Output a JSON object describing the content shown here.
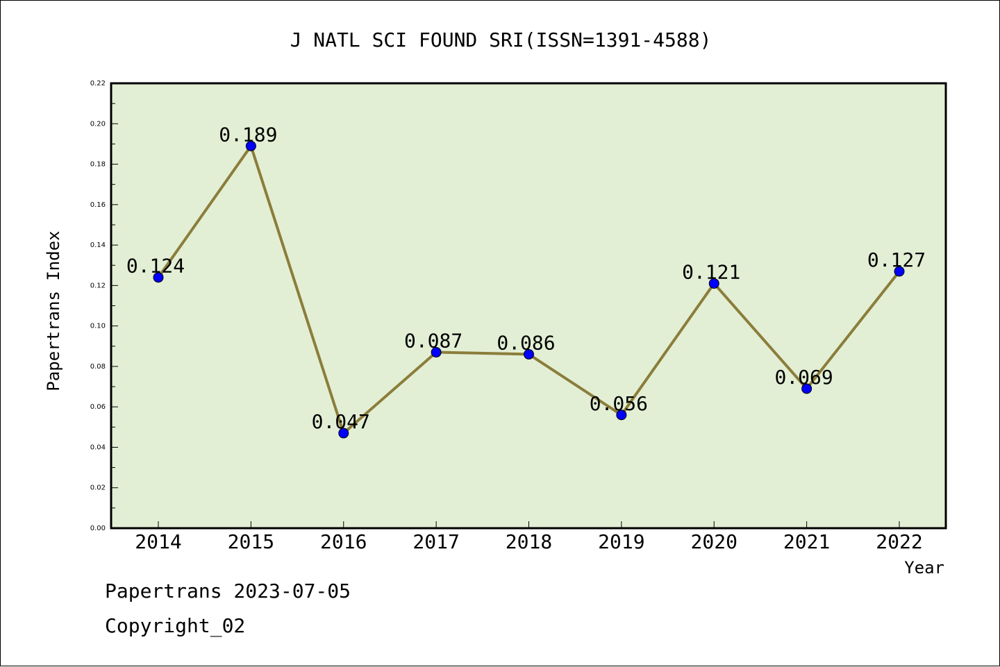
{
  "chart_data": {
    "type": "line",
    "title": "J NATL SCI FOUND SRI(ISSN=1391-4588)",
    "xlabel": "Year",
    "ylabel": "Papertrans Index",
    "categories": [
      "2014",
      "2015",
      "2016",
      "2017",
      "2018",
      "2019",
      "2020",
      "2021",
      "2022"
    ],
    "values": [
      0.124,
      0.189,
      0.047,
      0.087,
      0.086,
      0.056,
      0.121,
      0.069,
      0.127
    ],
    "value_labels": [
      "0.124",
      "0.189",
      "0.047",
      "0.087",
      "0.086",
      "0.056",
      "0.121",
      "0.069",
      "0.127"
    ],
    "ylim": [
      0,
      0.22
    ],
    "yticks": [
      "0.00",
      "0.02",
      "0.04",
      "0.06",
      "0.08",
      "0.10",
      "0.12",
      "0.14",
      "0.16",
      "0.18",
      "0.20",
      "0.22"
    ],
    "grid": false,
    "colors": {
      "plot_background": "#e2efd5",
      "line": "#8b7d3a",
      "marker": "#0000ff"
    }
  },
  "footer": {
    "line1": "Papertrans 2023-07-05",
    "line2": "Copyright_02"
  }
}
